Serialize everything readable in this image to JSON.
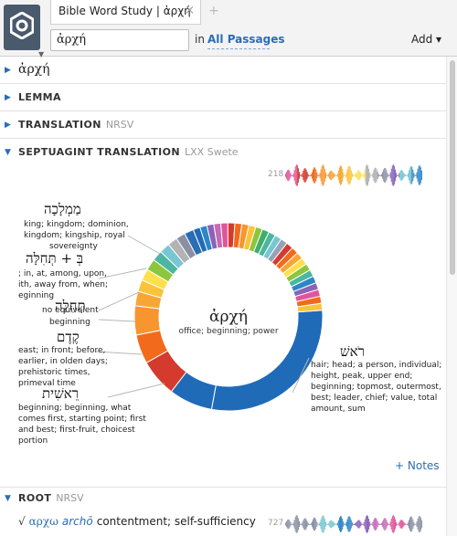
{
  "tab": {
    "title": "Bible Word Study | ἀρχή",
    "close": "×",
    "add": "+"
  },
  "search": {
    "value": "ἀρχή",
    "in_label": "in",
    "passages_label": "All Passages"
  },
  "toolbar": {
    "add_label": "Add ▾"
  },
  "sections": {
    "word": "ἀρχή",
    "lemma": "LEMMA",
    "translation": "TRANSLATION",
    "translation_version": "NRSV",
    "septuagint": "SEPTUAGINT TRANSLATION",
    "septuagint_version": "LXX Swete",
    "root": "ROOT",
    "root_version": "NRSV"
  },
  "septuagint": {
    "occurrence_count": "218",
    "center_word": "ἀρχή",
    "center_gloss": "office; beginning; power",
    "labels": [
      {
        "hebrew": "מַמְלָכָה",
        "gloss": [
          "king; kingdom; dominion,",
          "kingdom; kingship, royal",
          "sovereignty"
        ]
      },
      {
        "hebrew": "בְּ + תְּחִלָּה",
        "gloss": [
          "; in, at, among, upon,",
          "ith, away from, when;",
          "eginning"
        ]
      },
      {
        "hebrew": "תְּחִלָּה",
        "gloss": [
          "beginning"
        ]
      },
      {
        "hebrew": "קֶדֶם",
        "gloss": [
          "east; in front; before,",
          "earlier, in olden days;",
          "prehistoric times,",
          "primeval time"
        ]
      },
      {
        "hebrew": "רֵאשִׁית",
        "gloss": [
          "beginning; beginning, what",
          "comes first, starting point; first",
          "and best; first-fruit, choicest",
          "portion"
        ]
      },
      {
        "hebrew": "רֹאשׁ",
        "gloss": [
          "hair; head; a person, individual;",
          "height, peak, upper end;",
          "beginning; topmost, outermost,",
          "best; leader, chief; value, total",
          "amount, sum"
        ]
      }
    ],
    "notes_label": "+ Notes",
    "overlap_text": "no equivalent"
  },
  "root": {
    "symbol": "√",
    "word": "αρχω",
    "translit": "archō",
    "gloss": "contentment; self-sufficiency",
    "count": "727"
  },
  "colors": {
    "accent": "#2a6db6",
    "primary_slice": "#1f6bb8"
  },
  "icons": {
    "logo": "logos-app-icon",
    "expand": "triangle-right-icon",
    "collapse": "triangle-down-icon"
  }
}
